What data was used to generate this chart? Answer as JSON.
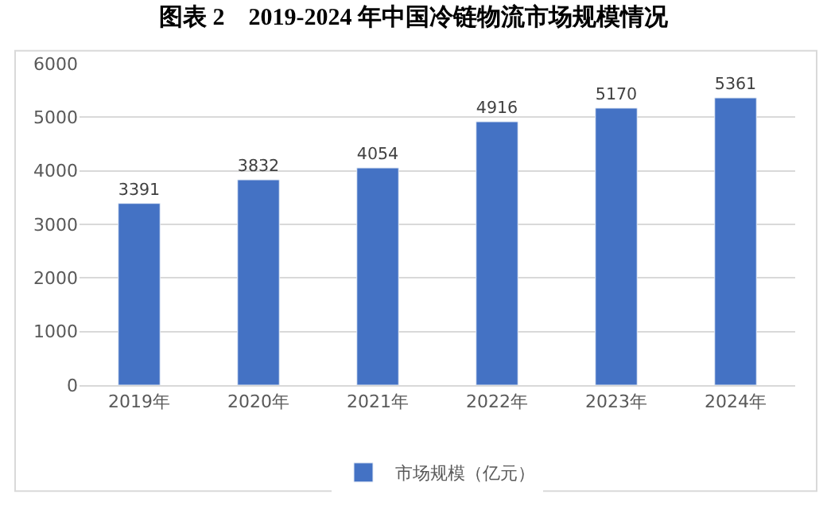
{
  "chart_data": {
    "type": "bar",
    "title": "图表 2    2019-2024 年中国冷链物流市场规模情况",
    "categories": [
      "2019年",
      "2020年",
      "2021年",
      "2022年",
      "2023年",
      "2024年"
    ],
    "series": [
      {
        "name": "市场规模（亿元）",
        "color": "#4472c4",
        "values": [
          3391,
          3832,
          4054,
          4916,
          5170,
          5361
        ]
      }
    ],
    "ylim": [
      0,
      6000
    ],
    "yticks": [
      0,
      1000,
      2000,
      3000,
      4000,
      5000,
      6000
    ],
    "grid": "y",
    "legend": "bottom",
    "data_labels": true
  }
}
